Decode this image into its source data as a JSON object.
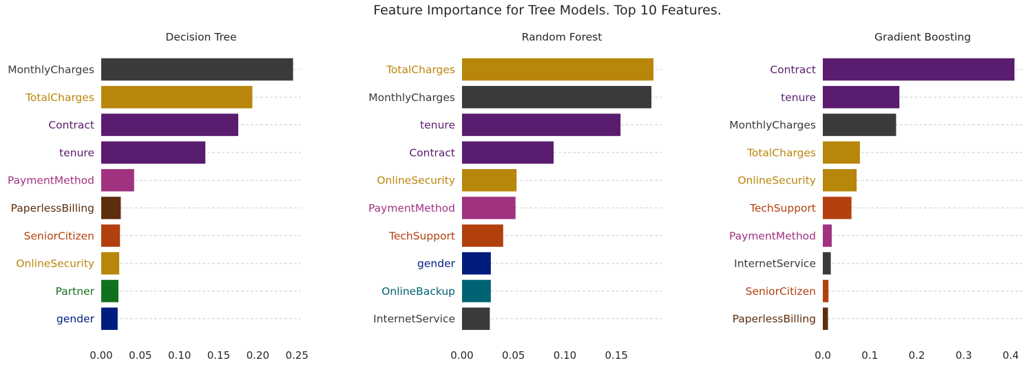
{
  "figure": {
    "title": "Feature Importance for Tree Models. Top 10 Features."
  },
  "colors": {
    "MonthlyCharges": "#3a3a3a",
    "TotalCharges": "#b8860b",
    "Contract": "#5a1c6e",
    "tenure": "#5a1c6e",
    "PaymentMethod": "#a03280",
    "PaperlessBilling": "#5c2e0e",
    "SeniorCitizen": "#b2400f",
    "OnlineSecurity": "#b8860b",
    "Partner": "#127021",
    "gender": "#001c7f",
    "TechSupport": "#b2400f",
    "OnlineBackup": "#006374",
    "InternetService": "#3a3a3a"
  },
  "chart_data": [
    {
      "type": "bar",
      "orientation": "horizontal",
      "title": "Decision Tree",
      "categories": [
        "MonthlyCharges",
        "TotalCharges",
        "Contract",
        "tenure",
        "PaymentMethod",
        "PaperlessBilling",
        "SeniorCitizen",
        "OnlineSecurity",
        "Partner",
        "gender"
      ],
      "values": [
        0.245,
        0.193,
        0.175,
        0.133,
        0.042,
        0.025,
        0.024,
        0.023,
        0.022,
        0.021
      ],
      "xlim": [
        0,
        0.255
      ],
      "ticks": [
        0,
        0.05,
        0.1,
        0.15,
        0.2,
        0.25
      ],
      "tick_labels": [
        "0.00",
        "0.05",
        "0.10",
        "0.15",
        "0.20",
        "0.25"
      ],
      "grid": "horizontal-dashed"
    },
    {
      "type": "bar",
      "orientation": "horizontal",
      "title": "Random Forest",
      "categories": [
        "TotalCharges",
        "MonthlyCharges",
        "tenure",
        "Contract",
        "OnlineSecurity",
        "PaymentMethod",
        "TechSupport",
        "gender",
        "OnlineBackup",
        "InternetService"
      ],
      "values": [
        0.186,
        0.184,
        0.154,
        0.089,
        0.053,
        0.052,
        0.04,
        0.028,
        0.028,
        0.027
      ],
      "xlim": [
        0,
        0.194
      ],
      "ticks": [
        0,
        0.05,
        0.1,
        0.15
      ],
      "tick_labels": [
        "0.00",
        "0.05",
        "0.10",
        "0.15"
      ],
      "grid": "horizontal-dashed"
    },
    {
      "type": "bar",
      "orientation": "horizontal",
      "title": "Gradient Boosting",
      "categories": [
        "Contract",
        "tenure",
        "MonthlyCharges",
        "TotalCharges",
        "OnlineSecurity",
        "TechSupport",
        "PaymentMethod",
        "InternetService",
        "SeniorCitizen",
        "PaperlessBilling"
      ],
      "values": [
        0.408,
        0.163,
        0.156,
        0.079,
        0.072,
        0.061,
        0.019,
        0.017,
        0.012,
        0.011
      ],
      "xlim": [
        0,
        0.425
      ],
      "ticks": [
        0,
        0.1,
        0.2,
        0.3,
        0.4
      ],
      "tick_labels": [
        "0.0",
        "0.1",
        "0.2",
        "0.3",
        "0.4"
      ],
      "grid": "horizontal-dashed"
    }
  ]
}
